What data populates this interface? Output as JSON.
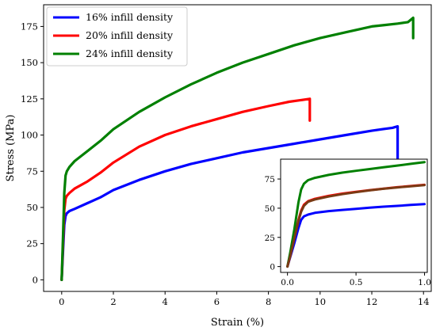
{
  "chart_data": [
    {
      "type": "line",
      "xlabel": "Strain (%)",
      "ylabel": "Stress (MPa)",
      "xlim": [
        -0.7,
        14.3
      ],
      "ylim": [
        -8,
        190
      ],
      "xticks": [
        "0",
        "2",
        "4",
        "6",
        "8",
        "10",
        "12",
        "14"
      ],
      "yticks": [
        "0",
        "25",
        "50",
        "75",
        "100",
        "125",
        "150",
        "175"
      ],
      "legend": "top-left",
      "grid": false,
      "series": [
        {
          "name": "16% infill density",
          "color": "#0000ff",
          "x": [
            0,
            0.05,
            0.1,
            0.15,
            0.2,
            0.3,
            0.5,
            1,
            1.5,
            2,
            3,
            4,
            5,
            6,
            7,
            8,
            9,
            10,
            11,
            12,
            12.4,
            12.8,
            13.0,
            13.0
          ],
          "y": [
            0,
            20,
            38,
            44,
            46,
            47.5,
            49,
            53,
            57,
            62,
            69,
            75,
            80,
            84,
            88,
            91,
            94,
            97,
            100,
            103,
            104,
            105,
            106,
            78
          ]
        },
        {
          "name": "20% infill density",
          "color": "#ff0000",
          "x": [
            0,
            0.05,
            0.1,
            0.15,
            0.2,
            0.3,
            0.5,
            1,
            1.5,
            2,
            3,
            4,
            5,
            6,
            7,
            8,
            8.8,
            9.2,
            9.6,
            9.6
          ],
          "y": [
            0,
            25,
            48,
            56,
            58,
            60,
            63,
            68,
            74,
            81,
            92,
            100,
            106,
            111,
            116,
            120,
            123,
            124,
            125,
            110
          ]
        },
        {
          "name": "24% infill density",
          "color": "#008000",
          "x": [
            0,
            0.05,
            0.1,
            0.15,
            0.2,
            0.3,
            0.5,
            1,
            1.5,
            2,
            3,
            4,
            5,
            6,
            7,
            8,
            9,
            10,
            11,
            12,
            12.5,
            13,
            13.4,
            13.6,
            13.6
          ],
          "y": [
            0,
            30,
            60,
            72,
            75,
            78,
            82,
            89,
            96,
            104,
            116,
            126,
            135,
            143,
            150,
            156,
            162,
            167,
            171,
            175,
            176,
            177,
            178,
            181,
            167
          ]
        }
      ]
    },
    {
      "type": "line",
      "xlabel": "",
      "ylabel": "",
      "xlim": [
        -0.05,
        1.02
      ],
      "ylim": [
        -5,
        92
      ],
      "xticks": [
        "0.0",
        "0.5",
        "1.0"
      ],
      "yticks": [
        "0",
        "25",
        "50",
        "75"
      ],
      "series": [
        {
          "color": "#0000ff",
          "x": [
            0,
            0.02,
            0.05,
            0.08,
            0.1,
            0.12,
            0.15,
            0.2,
            0.3,
            0.4,
            0.5,
            0.6,
            0.7,
            0.8,
            0.9,
            1.0
          ],
          "y": [
            0,
            8,
            20,
            33,
            40,
            43,
            44.5,
            46,
            47.5,
            48.5,
            49.5,
            50.5,
            51.3,
            52,
            52.8,
            53.5
          ]
        },
        {
          "color": "#ff0000",
          "x": [
            0,
            0.02,
            0.05,
            0.08,
            0.1,
            0.12,
            0.15,
            0.2,
            0.3,
            0.4,
            0.5,
            0.6,
            0.7,
            0.8,
            0.9,
            1.0
          ],
          "y": [
            0,
            9,
            25,
            40,
            48,
            53,
            56,
            58,
            60.5,
            62.5,
            64,
            65.5,
            66.8,
            68,
            69,
            70
          ]
        },
        {
          "color": "#008000",
          "x": [
            0,
            0.02,
            0.05,
            0.08,
            0.1,
            0.12,
            0.15,
            0.2,
            0.3,
            0.4,
            0.5,
            0.6,
            0.7,
            0.8,
            0.9,
            1.0
          ],
          "y": [
            0,
            12,
            32,
            55,
            66,
            71,
            74,
            76,
            78.5,
            80.5,
            82,
            83.5,
            85,
            86.5,
            88,
            89.5
          ]
        },
        {
          "color": "#7a3a14",
          "x": [
            0,
            0.02,
            0.05,
            0.08,
            0.1,
            0.12,
            0.15,
            0.2,
            0.3,
            0.4,
            0.5,
            0.6,
            0.7,
            0.8,
            0.9,
            1.0
          ],
          "y": [
            0,
            9,
            24,
            39,
            47,
            52,
            55.5,
            57.5,
            60,
            62,
            63.7,
            65.3,
            66.6,
            67.8,
            68.8,
            69.8
          ]
        }
      ]
    }
  ]
}
